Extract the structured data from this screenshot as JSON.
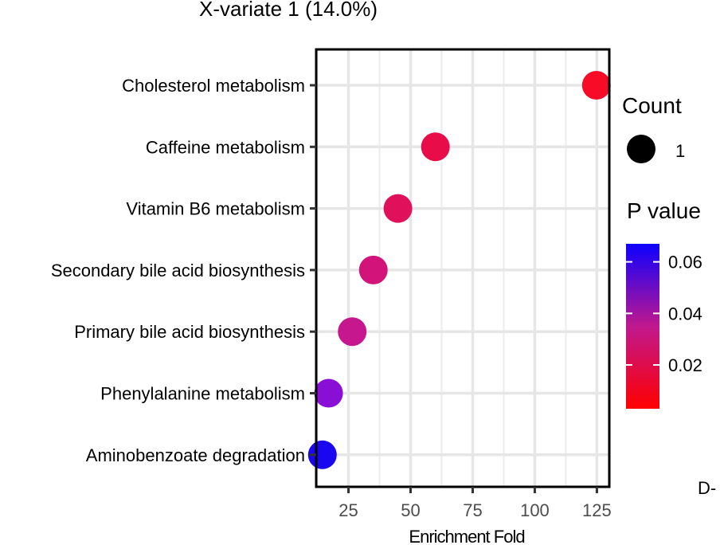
{
  "chart_data": {
    "type": "scatter",
    "title": "X-variate 1 (14.0%)",
    "xlabel": "Enrichment Fold",
    "ylabel": "",
    "xlim": [
      12,
      130
    ],
    "xticks": [
      25,
      50,
      75,
      100,
      125
    ],
    "grid": true,
    "points": [
      {
        "category": "Cholesterol metabolism",
        "x": 124.8,
        "p_value": 0.003,
        "color": "#f80b27",
        "count": 1
      },
      {
        "category": "Caffeine metabolism",
        "x": 60.0,
        "p_value": 0.012,
        "color": "#e80c48",
        "count": 1
      },
      {
        "category": "Vitamin B6 metabolism",
        "x": 44.9,
        "p_value": 0.017,
        "color": "#e0105a",
        "count": 1
      },
      {
        "category": "Secondary bile acid biosynthesis",
        "x": 35.0,
        "p_value": 0.025,
        "color": "#d2147a",
        "count": 1
      },
      {
        "category": "Primary bile acid biosynthesis",
        "x": 26.5,
        "p_value": 0.033,
        "color": "#c7178f",
        "count": 1
      },
      {
        "category": "Phenylalanine metabolism",
        "x": 17.0,
        "p_value": 0.05,
        "color": "#8a0fd6",
        "count": 1
      },
      {
        "category": "Aminobenzoate degradation",
        "x": 14.5,
        "p_value": 0.065,
        "color": "#1a06f0",
        "count": 1
      }
    ],
    "legend_size": {
      "title": "Count",
      "label": "1"
    },
    "legend_color": {
      "title": "P value",
      "range": [
        0.003,
        0.067
      ],
      "ticks": [
        0.02,
        0.04,
        0.06
      ],
      "tick_labels": [
        "0.02",
        "0.04",
        "0.06"
      ],
      "low_color": "#ff0000",
      "mid_color": "#c0188e",
      "high_color": "#0d00ff"
    },
    "panel_label": "D-"
  }
}
